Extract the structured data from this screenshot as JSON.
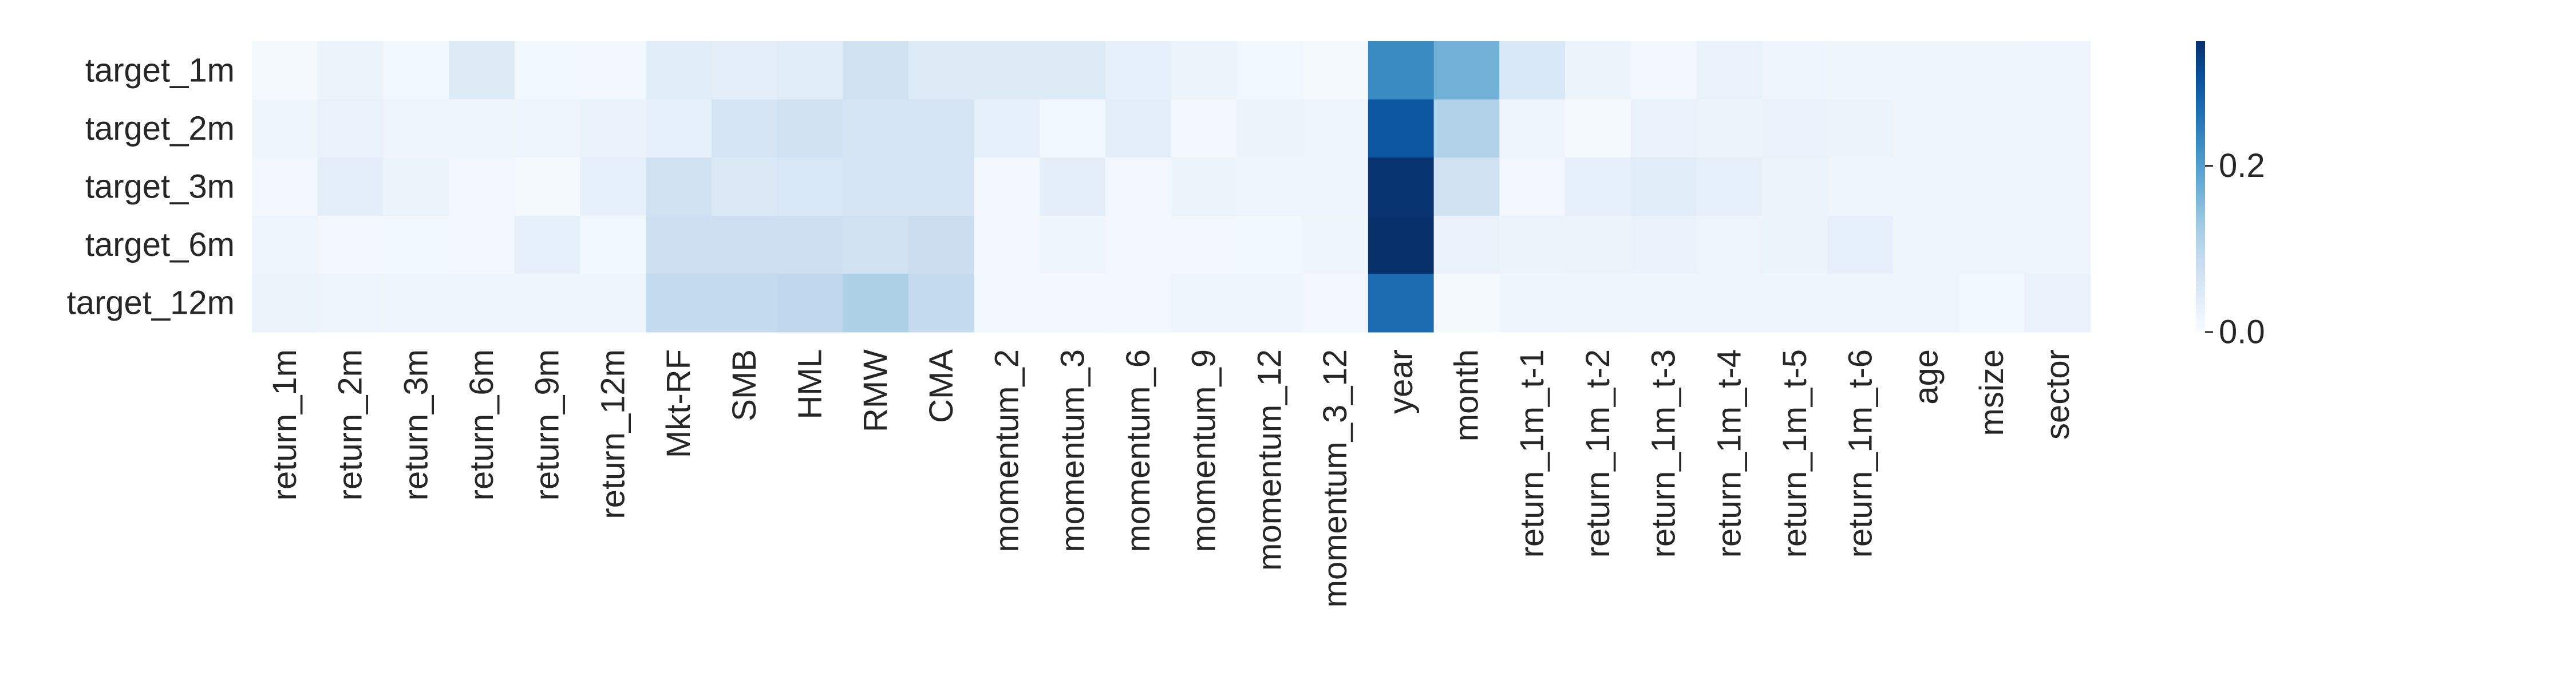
{
  "chart_data": {
    "type": "heatmap",
    "title": "",
    "xlabel": "",
    "ylabel": "",
    "rows": [
      "target_1m",
      "target_2m",
      "target_3m",
      "target_6m",
      "target_12m"
    ],
    "columns": [
      "return_1m",
      "return_2m",
      "return_3m",
      "return_6m",
      "return_9m",
      "return_12m",
      "Mkt-RF",
      "SMB",
      "HML",
      "RMW",
      "CMA",
      "momentum_2",
      "momentum_3",
      "momentum_6",
      "momentum_9",
      "momentum_12",
      "momentum_3_12",
      "year",
      "month",
      "return_1m_t-1",
      "return_1m_t-2",
      "return_1m_t-3",
      "return_1m_t-4",
      "return_1m_t-5",
      "return_1m_t-6",
      "age",
      "msize",
      "sector"
    ],
    "values": [
      [
        0.005,
        0.02,
        0.012,
        0.045,
        0.012,
        0.008,
        0.04,
        0.035,
        0.04,
        0.07,
        0.045,
        0.045,
        0.045,
        0.03,
        0.02,
        0.012,
        0.006,
        0.23,
        0.17,
        0.055,
        0.02,
        0.008,
        0.025,
        0.018,
        0.015,
        0.015,
        0.015,
        0.018
      ],
      [
        0.015,
        0.025,
        0.018,
        0.015,
        0.018,
        0.022,
        0.03,
        0.06,
        0.07,
        0.06,
        0.06,
        0.03,
        0.012,
        0.035,
        0.01,
        0.02,
        0.018,
        0.3,
        0.11,
        0.015,
        0.005,
        0.025,
        0.02,
        0.025,
        0.02,
        0.015,
        0.015,
        0.018
      ],
      [
        0.008,
        0.035,
        0.02,
        0.01,
        0.005,
        0.03,
        0.07,
        0.05,
        0.055,
        0.06,
        0.06,
        0.008,
        0.035,
        0.008,
        0.02,
        0.018,
        0.018,
        0.345,
        0.07,
        0.01,
        0.03,
        0.04,
        0.03,
        0.02,
        0.015,
        0.015,
        0.015,
        0.018
      ],
      [
        0.018,
        0.01,
        0.012,
        0.008,
        0.03,
        0.012,
        0.075,
        0.075,
        0.075,
        0.07,
        0.08,
        0.01,
        0.015,
        0.008,
        0.01,
        0.012,
        0.015,
        0.35,
        0.025,
        0.02,
        0.02,
        0.025,
        0.018,
        0.02,
        0.03,
        0.015,
        0.015,
        0.018
      ],
      [
        0.02,
        0.018,
        0.015,
        0.015,
        0.015,
        0.015,
        0.09,
        0.09,
        0.095,
        0.115,
        0.09,
        0.008,
        0.008,
        0.01,
        0.015,
        0.015,
        0.01,
        0.27,
        0.005,
        0.015,
        0.018,
        0.015,
        0.015,
        0.015,
        0.015,
        0.015,
        0.012,
        0.022
      ]
    ],
    "colorbar": {
      "colormap": "Blues",
      "vmin": 0.0,
      "vmax": 0.35,
      "ticks": [
        0.0,
        0.2
      ],
      "tick_labels": [
        "0.0",
        "0.2"
      ]
    }
  }
}
